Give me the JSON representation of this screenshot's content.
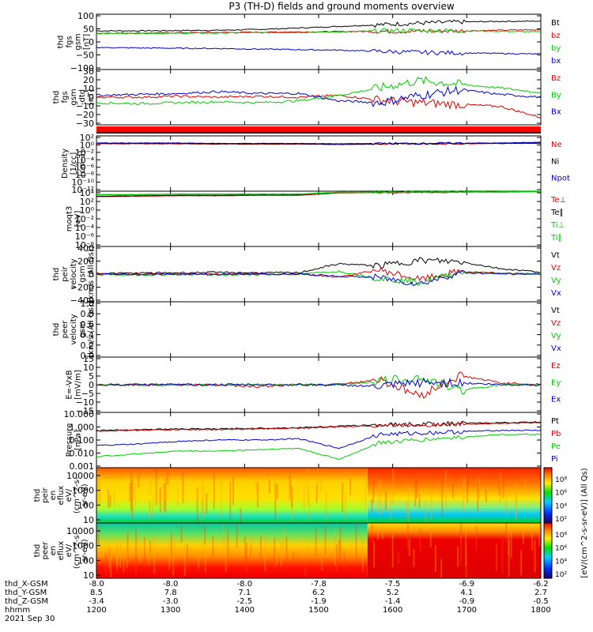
{
  "title": "P3 (TH-D) fields and ground moments overview",
  "colors": {
    "black": "#000000",
    "red": "#dd0000",
    "green": "#00cc00",
    "blue": "#0000cc"
  },
  "date": "2021 Sep 30",
  "chart_data": {
    "type": "line",
    "x": {
      "ticks": [
        "1200",
        "1300",
        "1400",
        "1500",
        "1600",
        "1700",
        "1800"
      ],
      "label": "hhmm",
      "range": [
        1200,
        1800
      ]
    },
    "ephemeris": [
      {
        "label": "thd_X-GSM",
        "values": [
          "-8.0",
          "-8.0",
          "-8.0",
          "-7.8",
          "-7.5",
          "-6.9",
          "-6.2"
        ]
      },
      {
        "label": "thd_Y-GSM",
        "values": [
          "8.5",
          "7.8",
          "7.1",
          "6.2",
          "5.2",
          "4.1",
          "2.7"
        ]
      },
      {
        "label": "thd_Z-GSM",
        "values": [
          "-3.4",
          "-3.0",
          "-2.5",
          "-1.9",
          "-1.4",
          "-0.9",
          "-0.5"
        ]
      }
    ],
    "panels": [
      {
        "id": "fgs",
        "ylabel": [
          "thd",
          "fgs",
          "gsm",
          "[nT]"
        ],
        "yticks": [
          "100",
          "50",
          "0",
          "−50",
          "−100"
        ],
        "ylim": [
          -100,
          100
        ],
        "series": [
          {
            "name": "Bt",
            "color": "black",
            "values": [
              40,
              40,
              41,
              42,
              45,
              50,
              56,
              62,
              68,
              72,
              74,
              75
            ]
          },
          {
            "name": "bz",
            "color": "red",
            "values": [
              32,
              32,
              33,
              34,
              35,
              36,
              37,
              38,
              38,
              40,
              42,
              44
            ]
          },
          {
            "name": "by",
            "color": "green",
            "values": [
              30,
              31,
              31,
              32,
              33,
              34,
              36,
              40,
              42,
              40,
              38,
              36
            ]
          },
          {
            "name": "bx",
            "color": "blue",
            "values": [
              -20,
              -22,
              -23,
              -24,
              -26,
              -28,
              -30,
              -34,
              -38,
              -40,
              -42,
              -44
            ]
          }
        ]
      },
      {
        "id": "fgs_dt",
        "ylabel": [
          "thd",
          "fgs",
          "gsm",
          "-dtd",
          "[nT]"
        ],
        "yticks": [
          "30",
          "20",
          "10",
          "0",
          "−10",
          "−20",
          "−30"
        ],
        "ylim": [
          -30,
          30
        ],
        "series": [
          {
            "name": "Bz",
            "color": "red",
            "values": [
              0,
              0,
              1,
              0,
              1,
              0,
              2,
              -3,
              -6,
              -8,
              -10,
              -22
            ]
          },
          {
            "name": "By",
            "color": "green",
            "values": [
              -6,
              -7,
              -6,
              -5,
              -6,
              -4,
              2,
              10,
              18,
              14,
              10,
              5
            ]
          },
          {
            "name": "Bx",
            "color": "blue",
            "values": [
              2,
              3,
              4,
              6,
              4,
              4,
              -4,
              -6,
              2,
              8,
              3,
              0
            ]
          }
        ]
      },
      {
        "id": "density",
        "ylabel": [
          "Density",
          "[1/cc]",
          "[cm-3]"
        ],
        "yticks": [
          "10²",
          "10⁰",
          "10⁻²",
          "10⁻⁴",
          "10⁻⁶",
          "10⁻⁸",
          "10⁻¹⁰",
          "10⁻¹²"
        ],
        "ylim": [
          -12,
          2
        ],
        "log": true,
        "series": [
          {
            "name": "Ne",
            "color": "red",
            "values": [
              0,
              0,
              0,
              -0.1,
              -0.1,
              -0.1,
              -0.2,
              -0.1,
              0,
              0,
              0.1,
              0.1
            ]
          },
          {
            "name": "Ni",
            "color": "black",
            "values": [
              0.1,
              0.1,
              0.1,
              0,
              0,
              0,
              -0.1,
              0,
              0,
              0.1,
              0.1,
              0.2
            ]
          },
          {
            "name": "Npot",
            "color": "blue",
            "values": [
              0.2,
              0.2,
              0.2,
              0.1,
              0.1,
              0.1,
              0,
              0.1,
              0.1,
              0.2,
              0.2,
              0.4
            ]
          }
        ]
      },
      {
        "id": "temperature",
        "ylabel": [
          "moqt3",
          "[eV]"
        ],
        "yticks": [
          "10⁴",
          "10²",
          "10⁰",
          "10⁻²",
          "10⁻⁴",
          "10⁻⁶",
          "10⁻⁸"
        ],
        "ylim": [
          -8,
          4
        ],
        "log": true,
        "series": [
          {
            "name": "Te⊥",
            "color": "red",
            "values": [
              2.8,
              2.9,
              3.0,
              3.0,
              3.1,
              3.1,
              3.6,
              3.7,
              3.7,
              3.8,
              3.8,
              3.9
            ]
          },
          {
            "name": "Te∥",
            "color": "black",
            "values": [
              2.9,
              3.0,
              3.1,
              3.1,
              3.2,
              3.2,
              3.7,
              3.8,
              3.8,
              3.9,
              3.9,
              4.0
            ]
          },
          {
            "name": "Ti⊥",
            "color": "green",
            "values": [
              3.3,
              3.3,
              3.4,
              3.4,
              3.4,
              3.4,
              3.8,
              3.8,
              3.9,
              3.9,
              3.9,
              4.0
            ]
          },
          {
            "name": "Ti∥",
            "color": "green",
            "values": [
              3.2,
              3.2,
              3.3,
              3.3,
              3.3,
              3.3,
              3.7,
              3.7,
              3.8,
              3.8,
              3.8,
              3.9
            ]
          }
        ]
      },
      {
        "id": "velocity_i",
        "ylabel": [
          "thd",
          "peir",
          "velocity",
          "gsm",
          "[km/s (All Qs)]"
        ],
        "yticks": [
          "400",
          "200",
          "0",
          "−200",
          "−400"
        ],
        "ylim": [
          -400,
          400
        ],
        "series": [
          {
            "name": "Vt",
            "color": "black",
            "values": [
              10,
              15,
              20,
              25,
              20,
              20,
              150,
              120,
              200,
              180,
              80,
              30
            ]
          },
          {
            "name": "Vz",
            "color": "red",
            "values": [
              0,
              0,
              5,
              0,
              5,
              0,
              -40,
              60,
              -80,
              40,
              10,
              0
            ]
          },
          {
            "name": "Vy",
            "color": "green",
            "values": [
              -5,
              -10,
              -5,
              -10,
              -5,
              0,
              40,
              -60,
              -120,
              30,
              10,
              0
            ]
          },
          {
            "name": "Vx",
            "color": "blue",
            "values": [
              0,
              -5,
              0,
              -5,
              0,
              0,
              -30,
              -50,
              -140,
              20,
              5,
              0
            ]
          }
        ]
      },
      {
        "id": "velocity_e",
        "ylabel": [
          "thd",
          "peer",
          "velocity",
          "gsm",
          "[km/s (All Qs)]"
        ],
        "yticks": [
          "1.0",
          "0.8",
          "0.6",
          "0.4",
          "0.2",
          "0.0"
        ],
        "ylim": [
          0,
          1
        ],
        "series": [
          {
            "name": "Vt",
            "color": "black",
            "values": []
          },
          {
            "name": "Vz",
            "color": "red",
            "values": []
          },
          {
            "name": "Vy",
            "color": "green",
            "values": []
          },
          {
            "name": "Vx",
            "color": "blue",
            "values": []
          }
        ]
      },
      {
        "id": "efield",
        "ylabel": [
          "E=-VxB",
          "[mV/m]"
        ],
        "yticks": [
          "15",
          "10",
          "5",
          "0",
          "−5",
          "−10",
          "−15"
        ],
        "ylim": [
          -15,
          15
        ],
        "series": [
          {
            "name": "Ez",
            "color": "red",
            "values": [
              0,
              0,
              0,
              0,
              -1,
              0,
              0,
              3,
              -6,
              5,
              1,
              0
            ]
          },
          {
            "name": "Ey",
            "color": "green",
            "values": [
              0,
              0,
              0,
              0,
              0,
              0,
              0,
              2,
              4,
              -3,
              0,
              0
            ]
          },
          {
            "name": "Ex",
            "color": "blue",
            "values": [
              0,
              0,
              0,
              0,
              0,
              0,
              0,
              -1,
              1,
              1,
              0,
              0
            ]
          }
        ]
      },
      {
        "id": "pressure",
        "ylabel": [
          "Pressure",
          "[nPa]"
        ],
        "yticks": [
          "10.000",
          "1.000",
          "0.100",
          "0.010",
          "0.001"
        ],
        "ylim": [
          -3,
          1
        ],
        "log": true,
        "series": [
          {
            "name": "Pt",
            "color": "black",
            "values": [
              -0.3,
              -0.25,
              -0.2,
              -0.2,
              -0.15,
              -0.1,
              0,
              0.1,
              0.15,
              0.2,
              0.25,
              0.3
            ]
          },
          {
            "name": "Pb",
            "color": "red",
            "values": [
              -0.35,
              -0.3,
              -0.25,
              -0.25,
              -0.2,
              -0.15,
              -0.05,
              0.05,
              0.1,
              0.15,
              0.2,
              0.25
            ]
          },
          {
            "name": "Pe",
            "color": "green",
            "values": [
              -2.2,
              -2.0,
              -1.8,
              -1.8,
              -1.7,
              -1.6,
              -2.4,
              -1.2,
              -1.0,
              -0.8,
              -0.6,
              -0.6
            ]
          },
          {
            "name": "Pi",
            "color": "blue",
            "values": [
              -1.4,
              -1.3,
              -1.1,
              -1.0,
              -1.0,
              -0.9,
              -1.6,
              -0.6,
              -0.5,
              -0.4,
              -0.3,
              -0.3
            ]
          }
        ]
      }
    ],
    "spectrograms": [
      {
        "id": "peir_eflux",
        "ylabel": [
          "thd",
          "peir",
          "en",
          "eflux",
          "eV/",
          "(cm^2-s-",
          "sr-eV)"
        ],
        "yticks": [
          "10000",
          "1000",
          "100",
          "10"
        ],
        "zlabel": "[eV/(cm^2-s-sr-eV)] (All Qs)",
        "zticks": [
          "10⁸",
          "10⁶",
          "10⁴",
          "10²"
        ]
      },
      {
        "id": "peer_eflux",
        "ylabel": [
          "thd",
          "peer",
          "en",
          "eflux",
          "eV/",
          "(cm^2-s-",
          "sr-eV)"
        ],
        "yticks": [
          "10000",
          "1000",
          "100",
          "10"
        ],
        "zlabel": "[eV/(cm^2-s-sr-eV)] (All Qs)",
        "zticks": [
          "10⁸",
          "10⁶",
          "10⁴",
          "10²"
        ]
      }
    ]
  }
}
